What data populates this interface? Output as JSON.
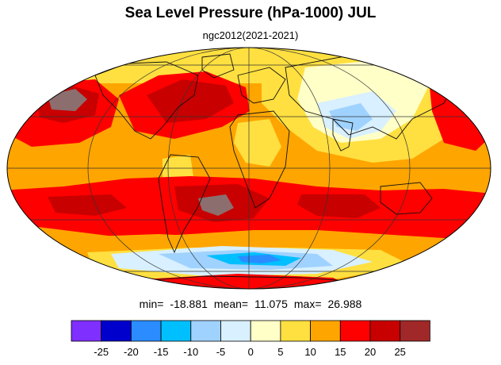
{
  "title": "Sea Level Pressure (hPa-1000) JUL",
  "subtitle": "ngc2012(2021-2021)",
  "stats": {
    "min_label": "min=",
    "min_value": "-18.881",
    "mean_label": "mean=",
    "mean_value": "11.075",
    "max_label": "max=",
    "max_value": "26.988"
  },
  "colorbar": {
    "colors": [
      "#7f2fff",
      "#0000cc",
      "#2a8cff",
      "#00bfff",
      "#a0d2ff",
      "#d8f0ff",
      "#ffffc8",
      "#ffe040",
      "#ffa500",
      "#ff0000",
      "#c80000",
      "#a02828"
    ],
    "tick_labels": [
      "-25",
      "-20",
      "-15",
      "-10",
      "-5",
      "0",
      "5",
      "10",
      "15",
      "20",
      "25"
    ]
  },
  "palette": {
    "yellow": "#ffe040",
    "orange": "#ffa500",
    "red": "#ff0000",
    "darkred": "#c80000",
    "brownred": "#a02828",
    "paleyellow": "#ffffc8",
    "paleblue": "#d8f0ff",
    "lightblue": "#a0d2ff",
    "cyan": "#00bfff",
    "blue": "#2a8cff",
    "gray": "#8c6e6e"
  }
}
